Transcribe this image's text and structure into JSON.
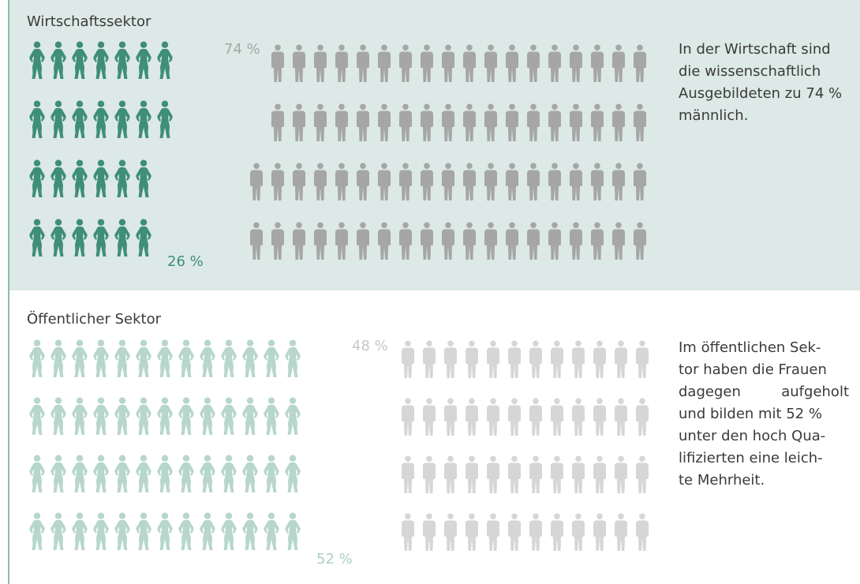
{
  "colors": {
    "business_women": "#3e8e78",
    "business_men": "#a6a6a6",
    "public_women": "#b7d6cc",
    "public_men": "#d6d6d6",
    "business_bg": "#dce9e6",
    "rule": "#8fbcae"
  },
  "icons": {
    "women": "woman-figure-icon",
    "men": "man-figure-icon"
  },
  "business": {
    "title": "Wirtschaftssektor",
    "women_label": "26 %",
    "men_label": "74 %",
    "desc_lines": [
      "In der Wirtschaft sind",
      "die wissenschaftlich",
      "Ausgebildeten zu 74 %",
      "männlich."
    ]
  },
  "public": {
    "title": "Öffentlicher Sektor",
    "women_label": "52 %",
    "men_label": "48 %",
    "desc_lines": [
      "Im öffentlichen Sek-",
      "tor haben die Frauen",
      "dagegen aufgeholt",
      "und bilden mit 52 %",
      "unter den hoch Qua-",
      "lifizierten eine leich-",
      "te Mehrheit."
    ]
  },
  "chart_data": [
    {
      "type": "pictogram",
      "title": "Wirtschaftssektor",
      "categories": [
        "Frauen",
        "Männer"
      ],
      "values": [
        26,
        74
      ],
      "unit": "%",
      "icon_counts_per_row": {
        "women": [
          7,
          7,
          6,
          6
        ],
        "men": [
          18,
          18,
          19,
          19
        ]
      }
    },
    {
      "type": "pictogram",
      "title": "Öffentlicher Sektor",
      "categories": [
        "Frauen",
        "Männer"
      ],
      "values": [
        52,
        48
      ],
      "unit": "%",
      "icon_counts_per_row": {
        "women": [
          13,
          13,
          13,
          13
        ],
        "men": [
          12,
          12,
          12,
          12
        ]
      }
    }
  ]
}
